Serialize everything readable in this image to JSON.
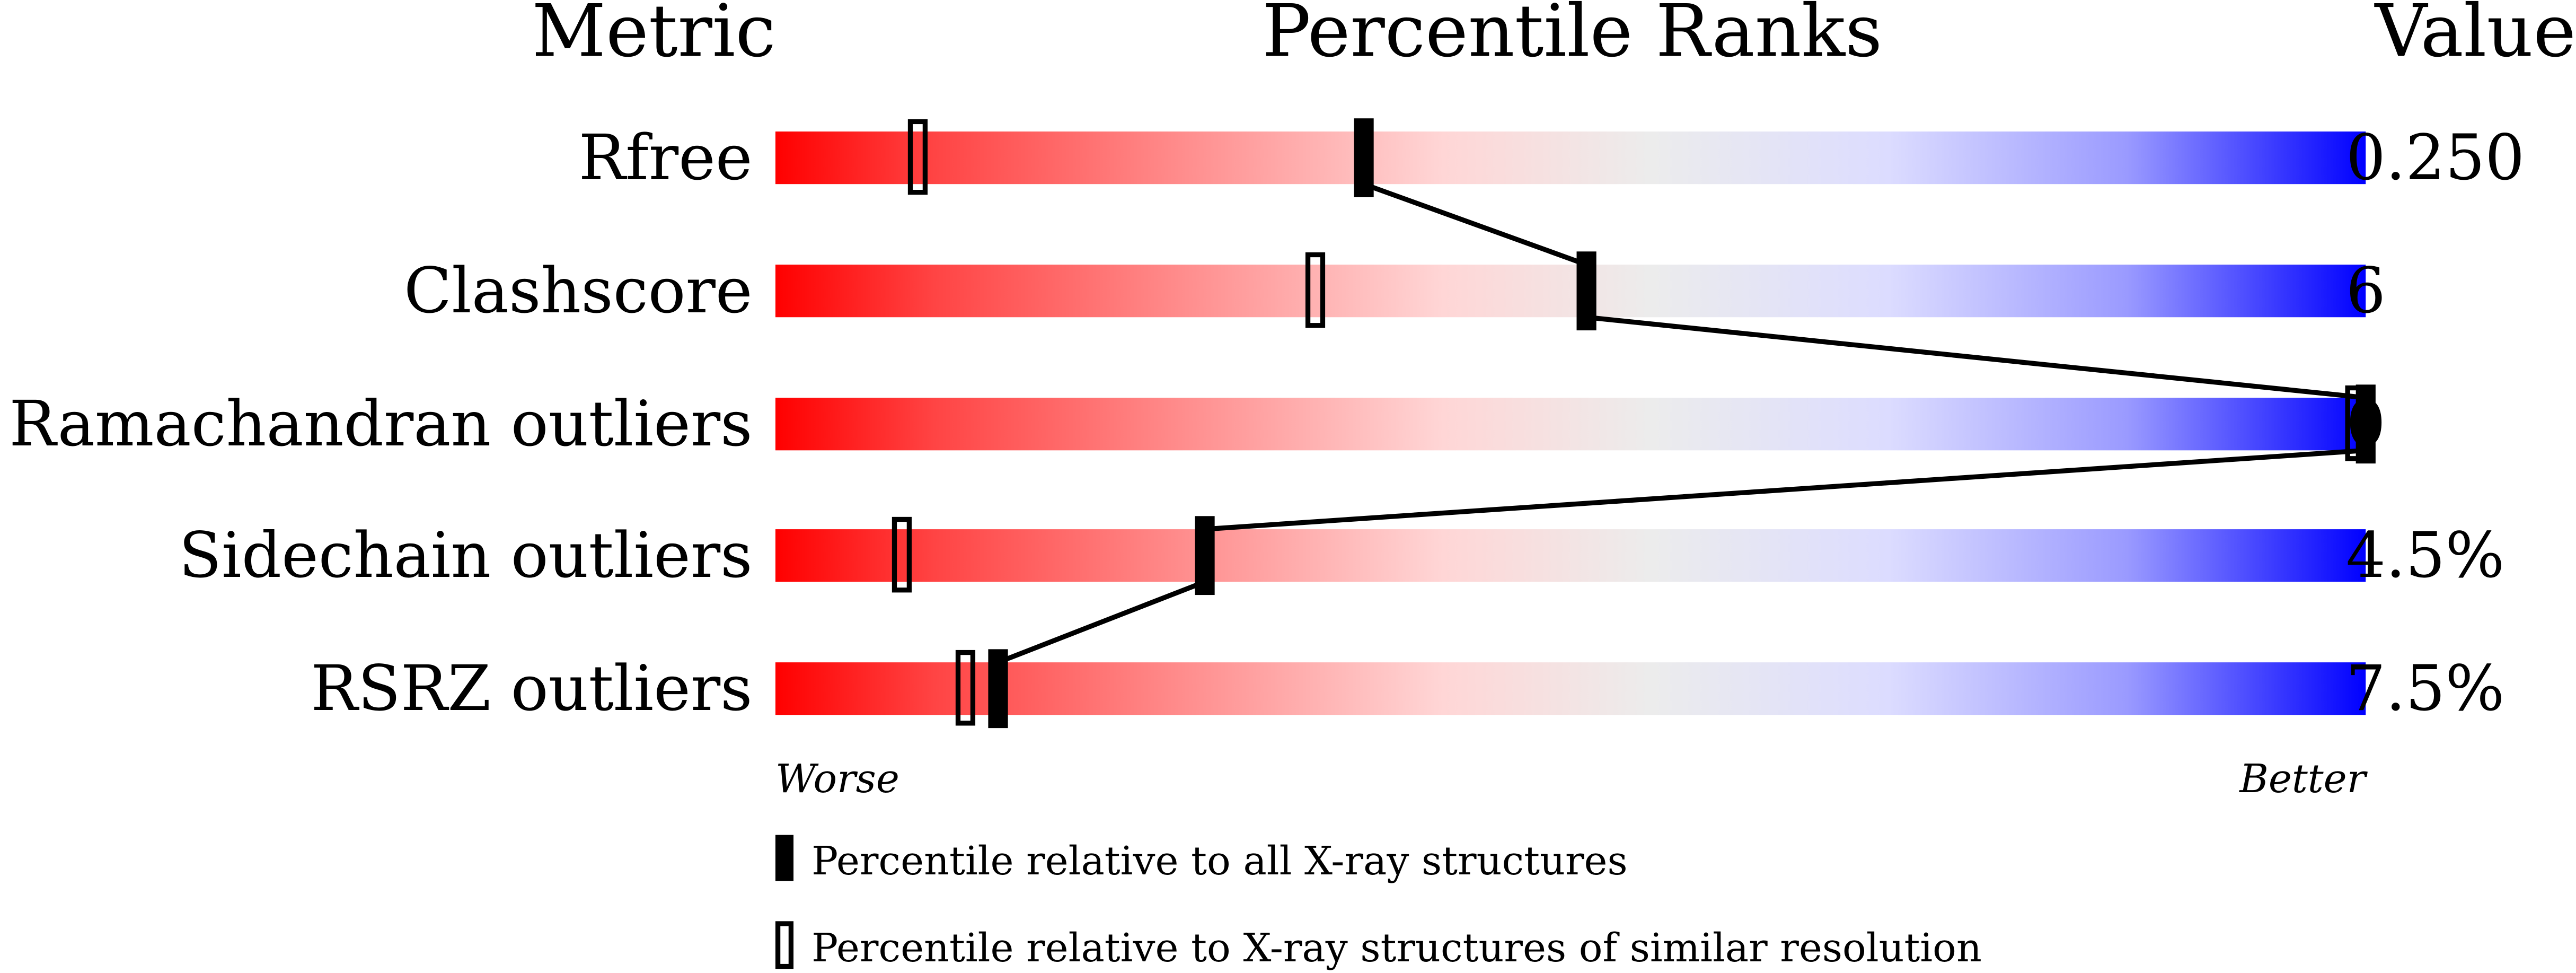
{
  "chart_data": {
    "type": "percentile-ranks",
    "headers": {
      "metric": "Metric",
      "ranks": "Percentile Ranks",
      "value": "Value"
    },
    "xlim": [
      0,
      100
    ],
    "axis_labels": {
      "left": "Worse",
      "right": "Better"
    },
    "colors": {
      "worse": "#ff0000",
      "middle": "#eeeeee",
      "better": "#0000ff",
      "marker": "#000000"
    },
    "metrics": [
      {
        "name": "Rfree",
        "value": "0.250",
        "percentile_all": 37,
        "percentile_similar": 9
      },
      {
        "name": "Clashscore",
        "value": "6",
        "percentile_all": 51,
        "percentile_similar": 34
      },
      {
        "name": "Ramachandran outliers",
        "value": "0",
        "percentile_all": 100,
        "percentile_similar": 100
      },
      {
        "name": "Sidechain outliers",
        "value": "4.5%",
        "percentile_all": 27,
        "percentile_similar": 8
      },
      {
        "name": "RSRZ outliers",
        "value": "7.5%",
        "percentile_all": 14,
        "percentile_similar": 12
      }
    ],
    "legend": [
      {
        "marker": "filled",
        "label": "Percentile relative to all X-ray structures"
      },
      {
        "marker": "open",
        "label": "Percentile relative to X-ray structures of similar resolution"
      }
    ]
  }
}
